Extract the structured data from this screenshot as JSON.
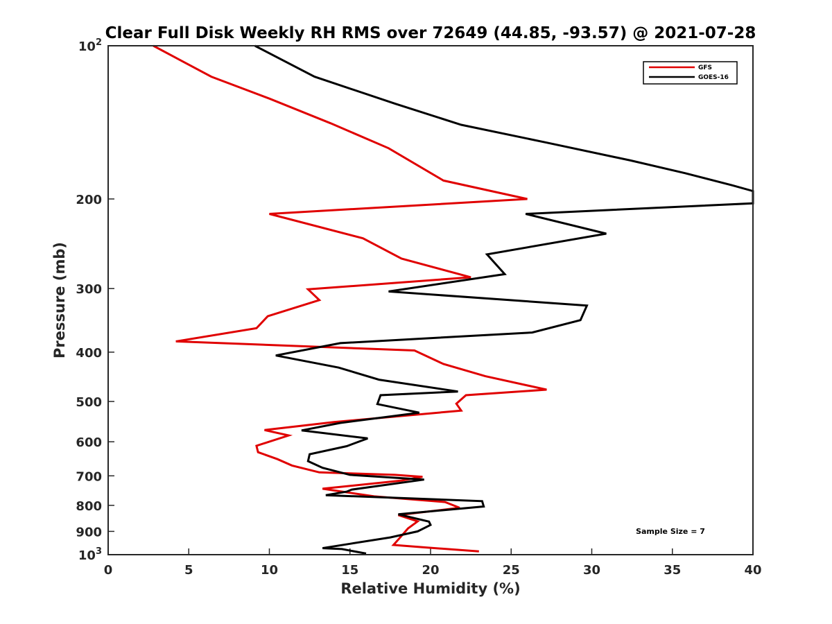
{
  "chart_data": {
    "type": "line",
    "title": "Clear Full Disk Weekly RH RMS over 72649 (44.85, -93.57) @ 2021-07-28",
    "xlabel": "Relative Humidity (%)",
    "ylabel": "Pressure (mb)",
    "xlim": [
      0,
      40
    ],
    "ylim": [
      100,
      1000
    ],
    "y_scale": "log",
    "y_reversed": true,
    "grid": false,
    "legend_position": "top-right",
    "x_ticks": [
      0,
      5,
      10,
      15,
      20,
      25,
      30,
      35,
      40
    ],
    "y_ticks": [
      {
        "value": 100,
        "label": "10",
        "sup": "2"
      },
      {
        "value": 200,
        "label": "200",
        "sup": ""
      },
      {
        "value": 300,
        "label": "300",
        "sup": ""
      },
      {
        "value": 400,
        "label": "400",
        "sup": ""
      },
      {
        "value": 500,
        "label": "500",
        "sup": ""
      },
      {
        "value": 600,
        "label": "600",
        "sup": ""
      },
      {
        "value": 700,
        "label": "700",
        "sup": ""
      },
      {
        "value": 800,
        "label": "800",
        "sup": ""
      },
      {
        "value": 900,
        "label": "900",
        "sup": ""
      },
      {
        "value": 1000,
        "label": "10",
        "sup": "3"
      }
    ],
    "series": [
      {
        "name": "GFS",
        "color": "#e00000",
        "points": [
          [
            2.8,
            100
          ],
          [
            6.4,
            115
          ],
          [
            10.0,
            127
          ],
          [
            13.8,
            142
          ],
          [
            17.4,
            159
          ],
          [
            20.8,
            184
          ],
          [
            26.0,
            200
          ],
          [
            10.0,
            214
          ],
          [
            15.8,
            239
          ],
          [
            18.2,
            262
          ],
          [
            22.5,
            285
          ],
          [
            12.4,
            301
          ],
          [
            13.1,
            316
          ],
          [
            9.9,
            340
          ],
          [
            9.2,
            359
          ],
          [
            4.2,
            381
          ],
          [
            19.0,
            397
          ],
          [
            20.8,
            422
          ],
          [
            23.4,
            446
          ],
          [
            27.2,
            474
          ],
          [
            22.2,
            486
          ],
          [
            21.6,
            505
          ],
          [
            21.9,
            521
          ],
          [
            14.0,
            549
          ],
          [
            9.7,
            569
          ],
          [
            11.2,
            583
          ],
          [
            9.2,
            611
          ],
          [
            9.3,
            629
          ],
          [
            10.5,
            649
          ],
          [
            11.4,
            668
          ],
          [
            13.1,
            689
          ],
          [
            15.5,
            693
          ],
          [
            17.8,
            697
          ],
          [
            19.5,
            703
          ],
          [
            18.2,
            715
          ],
          [
            13.3,
            742
          ],
          [
            16.5,
            768
          ],
          [
            20.9,
            788
          ],
          [
            21.8,
            809
          ],
          [
            18.0,
            836
          ],
          [
            19.2,
            860
          ],
          [
            18.6,
            888
          ],
          [
            18.0,
            934
          ],
          [
            17.7,
            957
          ],
          [
            19.5,
            967
          ],
          [
            23.0,
            985
          ]
        ]
      },
      {
        "name": "GOES-16",
        "color": "#000000",
        "points": [
          [
            9.1,
            100
          ],
          [
            12.8,
            115
          ],
          [
            17.8,
            130
          ],
          [
            21.9,
            143
          ],
          [
            27.2,
            155
          ],
          [
            32.4,
            168
          ],
          [
            35.8,
            178
          ],
          [
            38.7,
            188
          ],
          [
            40.0,
            193
          ],
          [
            40.0,
            204
          ],
          [
            25.9,
            214
          ],
          [
            30.9,
            234
          ],
          [
            23.5,
            257
          ],
          [
            24.6,
            281
          ],
          [
            17.4,
            304
          ],
          [
            29.7,
            324
          ],
          [
            29.3,
            346
          ],
          [
            26.3,
            366
          ],
          [
            14.4,
            384
          ],
          [
            10.4,
            406
          ],
          [
            14.3,
            429
          ],
          [
            16.8,
            453
          ],
          [
            21.7,
            478
          ],
          [
            16.9,
            486
          ],
          [
            16.7,
            506
          ],
          [
            19.3,
            526
          ],
          [
            14.4,
            551
          ],
          [
            12.0,
            570
          ],
          [
            16.1,
            591
          ],
          [
            14.8,
            612
          ],
          [
            12.5,
            635
          ],
          [
            12.4,
            655
          ],
          [
            13.3,
            675
          ],
          [
            15.0,
            697
          ],
          [
            19.6,
            712
          ],
          [
            15.1,
            745
          ],
          [
            14.8,
            752
          ],
          [
            13.5,
            764
          ],
          [
            23.2,
            785
          ],
          [
            23.3,
            804
          ],
          [
            18.0,
            833
          ],
          [
            19.9,
            861
          ],
          [
            20.0,
            874
          ],
          [
            19.2,
            900
          ],
          [
            17.5,
            925
          ],
          [
            15.0,
            952
          ],
          [
            13.3,
            971
          ],
          [
            14.5,
            975
          ],
          [
            16.0,
            995
          ]
        ]
      }
    ],
    "annotation": "Sample Size = 7"
  }
}
